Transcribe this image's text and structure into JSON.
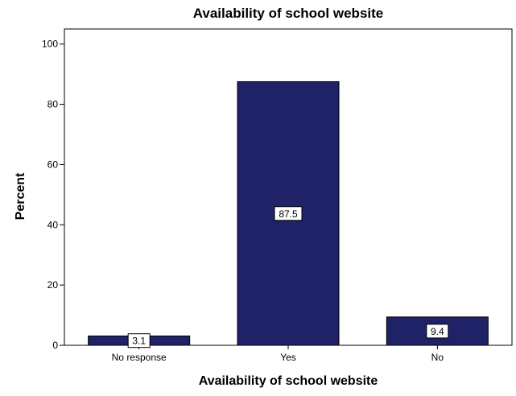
{
  "chart_data": {
    "type": "bar",
    "title": "Availability of school website",
    "xlabel": "Availability of school website",
    "ylabel": "Percent",
    "categories": [
      "No response",
      "Yes",
      "No"
    ],
    "values": [
      3.1,
      87.5,
      9.4
    ],
    "data_labels": [
      "3.1",
      "87.5",
      "9.4"
    ],
    "ylim": [
      0,
      105
    ],
    "yticks": [
      0,
      20,
      40,
      60,
      80,
      100
    ],
    "grid": false,
    "legend": "none",
    "bar_color": "#1f2266",
    "bar_edge_color": "#000000"
  }
}
